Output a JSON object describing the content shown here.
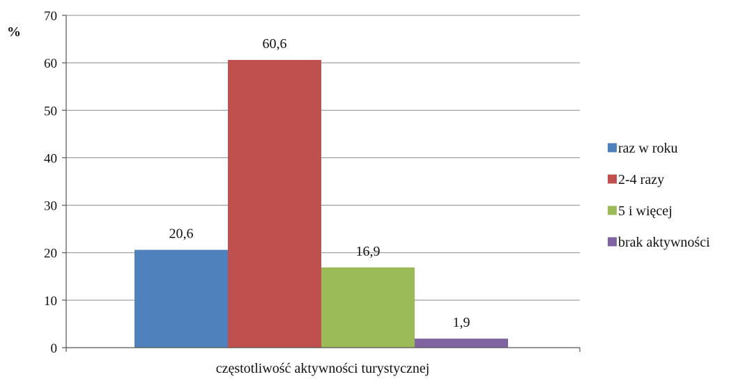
{
  "chart_data": {
    "type": "bar",
    "ylabel": "%",
    "xlabel": "częstotliwość aktywności turystycznej",
    "ylim": [
      0,
      70
    ],
    "yticks": [
      0,
      10,
      20,
      30,
      40,
      50,
      60,
      70
    ],
    "grid": true,
    "legend_position": "right",
    "series": [
      {
        "name": "raz w roku",
        "value": 20.6,
        "label": "20,6",
        "color": "#4f81bd"
      },
      {
        "name": "2-4 razy",
        "value": 60.6,
        "label": "60,6",
        "color": "#c0504d"
      },
      {
        "name": "5 i więcej",
        "value": 16.9,
        "label": "16,9",
        "color": "#9bbb59"
      },
      {
        "name": "brak aktywności",
        "value": 1.9,
        "label": "1,9",
        "color": "#8064a2"
      }
    ]
  }
}
